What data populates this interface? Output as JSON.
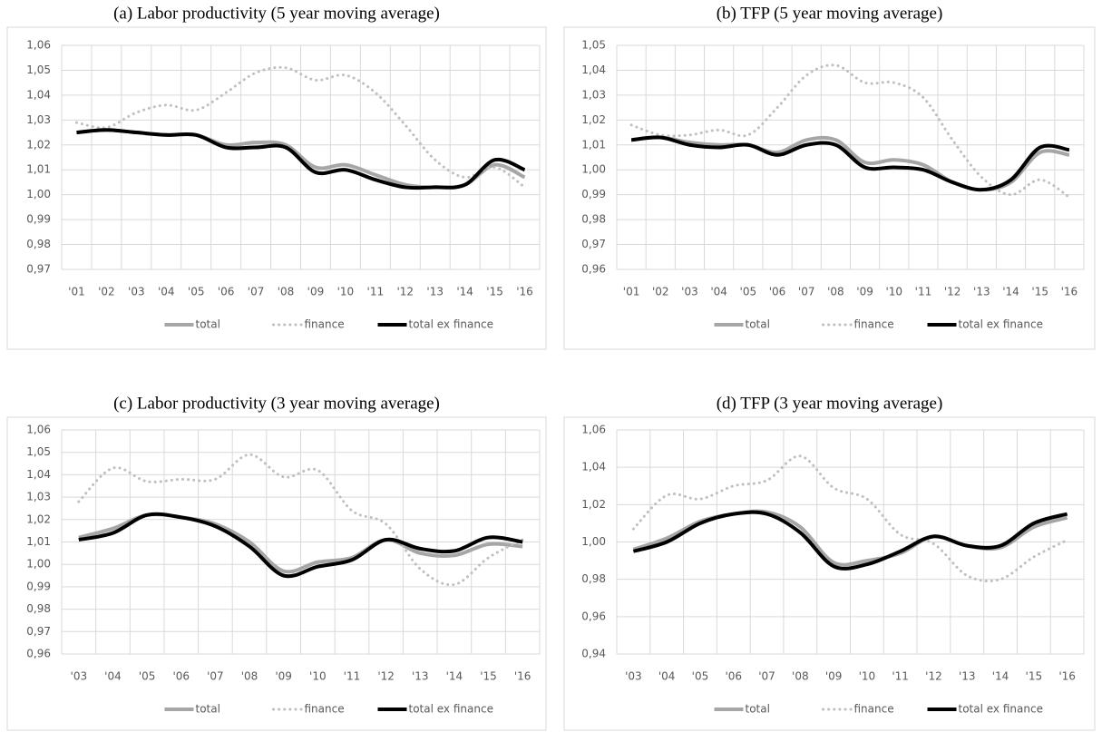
{
  "chart_data": [
    {
      "type": "line",
      "title": "(a) Labor productivity (5 year moving average)",
      "categories": [
        "'01",
        "'02",
        "'03",
        "'04",
        "'05",
        "'06",
        "'07",
        "'08",
        "'09",
        "'10",
        "'11",
        "'12",
        "'13",
        "'14",
        "'15",
        "'16"
      ],
      "series": [
        {
          "name": "total",
          "color": "#a6a6a6",
          "style": "solid",
          "values": [
            1.025,
            1.026,
            1.025,
            1.024,
            1.024,
            1.02,
            1.021,
            1.02,
            1.011,
            1.012,
            1.008,
            1.004,
            1.003,
            1.004,
            1.012,
            1.007
          ]
        },
        {
          "name": "finance",
          "color": "#bfbfbf",
          "style": "dotted",
          "values": [
            1.029,
            1.027,
            1.033,
            1.036,
            1.034,
            1.041,
            1.049,
            1.051,
            1.046,
            1.048,
            1.041,
            1.028,
            1.014,
            1.007,
            1.011,
            1.003
          ]
        },
        {
          "name": "total ex finance",
          "color": "#000000",
          "style": "solid",
          "values": [
            1.025,
            1.026,
            1.025,
            1.024,
            1.024,
            1.019,
            1.019,
            1.019,
            1.009,
            1.01,
            1.006,
            1.003,
            1.003,
            1.004,
            1.014,
            1.01
          ]
        }
      ],
      "ylim": [
        0.97,
        1.06
      ],
      "yticks": [
        {
          "value": 0.97,
          "label": "0,97"
        },
        {
          "value": 0.98,
          "label": "0,98"
        },
        {
          "value": 0.99,
          "label": "0,99"
        },
        {
          "value": 1.0,
          "label": "1,00"
        },
        {
          "value": 1.01,
          "label": "1,01"
        },
        {
          "value": 1.02,
          "label": "1,02"
        },
        {
          "value": 1.03,
          "label": "1,03"
        },
        {
          "value": 1.04,
          "label": "1,04"
        },
        {
          "value": 1.05,
          "label": "1,05"
        },
        {
          "value": 1.06,
          "label": "1,06"
        }
      ],
      "grid": true,
      "legend": "bottom"
    },
    {
      "type": "line",
      "title": "(b) TFP (5 year moving average)",
      "categories": [
        "'01",
        "'02",
        "'03",
        "'04",
        "'05",
        "'06",
        "'07",
        "'08",
        "'09",
        "'10",
        "'11",
        "'12",
        "'13",
        "'14",
        "'15",
        "'16"
      ],
      "series": [
        {
          "name": "total",
          "color": "#a6a6a6",
          "style": "solid",
          "values": [
            1.012,
            1.013,
            1.011,
            1.01,
            1.01,
            1.007,
            1.012,
            1.012,
            1.003,
            1.004,
            1.002,
            0.995,
            0.992,
            0.995,
            1.007,
            1.006
          ]
        },
        {
          "name": "finance",
          "color": "#bfbfbf",
          "style": "dotted",
          "values": [
            1.018,
            1.014,
            1.014,
            1.016,
            1.014,
            1.025,
            1.038,
            1.042,
            1.035,
            1.035,
            1.029,
            1.012,
            0.997,
            0.99,
            0.996,
            0.989
          ]
        },
        {
          "name": "total ex finance",
          "color": "#000000",
          "style": "solid",
          "values": [
            1.012,
            1.013,
            1.01,
            1.009,
            1.01,
            1.006,
            1.01,
            1.01,
            1.001,
            1.001,
            1.0,
            0.995,
            0.992,
            0.996,
            1.009,
            1.008
          ]
        }
      ],
      "ylim": [
        0.96,
        1.05
      ],
      "yticks": [
        {
          "value": 0.96,
          "label": "0,96"
        },
        {
          "value": 0.97,
          "label": "0,97"
        },
        {
          "value": 0.98,
          "label": "0,98"
        },
        {
          "value": 0.99,
          "label": "0,99"
        },
        {
          "value": 1.0,
          "label": "1,00"
        },
        {
          "value": 1.01,
          "label": "1,01"
        },
        {
          "value": 1.02,
          "label": "1,02"
        },
        {
          "value": 1.03,
          "label": "1,03"
        },
        {
          "value": 1.04,
          "label": "1,04"
        },
        {
          "value": 1.05,
          "label": "1,05"
        }
      ],
      "grid": true,
      "legend": "bottom"
    },
    {
      "type": "line",
      "title": "(c) Labor productivity (3 year moving average)",
      "categories": [
        "'03",
        "'04",
        "'05",
        "'06",
        "'07",
        "'08",
        "'09",
        "'10",
        "'11",
        "'12",
        "'13",
        "'14",
        "'15",
        "'16"
      ],
      "series": [
        {
          "name": "total",
          "color": "#a6a6a6",
          "style": "solid",
          "values": [
            1.012,
            1.016,
            1.022,
            1.021,
            1.018,
            1.01,
            0.997,
            1.001,
            1.003,
            1.011,
            1.005,
            1.004,
            1.009,
            1.008
          ]
        },
        {
          "name": "finance",
          "color": "#bfbfbf",
          "style": "dotted",
          "values": [
            1.028,
            1.043,
            1.037,
            1.038,
            1.038,
            1.049,
            1.039,
            1.042,
            1.024,
            1.018,
            0.998,
            0.991,
            1.003,
            1.011
          ]
        },
        {
          "name": "total ex finance",
          "color": "#000000",
          "style": "solid",
          "values": [
            1.011,
            1.014,
            1.022,
            1.021,
            1.017,
            1.008,
            0.995,
            0.999,
            1.002,
            1.011,
            1.007,
            1.006,
            1.012,
            1.01
          ]
        }
      ],
      "ylim": [
        0.96,
        1.06
      ],
      "yticks": [
        {
          "value": 0.96,
          "label": "0,96"
        },
        {
          "value": 0.97,
          "label": "0,97"
        },
        {
          "value": 0.98,
          "label": "0,98"
        },
        {
          "value": 0.99,
          "label": "0,99"
        },
        {
          "value": 1.0,
          "label": "1,00"
        },
        {
          "value": 1.01,
          "label": "1,01"
        },
        {
          "value": 1.02,
          "label": "1,02"
        },
        {
          "value": 1.03,
          "label": "1,03"
        },
        {
          "value": 1.04,
          "label": "1,04"
        },
        {
          "value": 1.05,
          "label": "1,05"
        },
        {
          "value": 1.06,
          "label": "1,06"
        }
      ],
      "grid": true,
      "legend": "bottom"
    },
    {
      "type": "line",
      "title": "(d) TFP (3 year moving average)",
      "categories": [
        "'03",
        "'04",
        "'05",
        "'06",
        "'07",
        "'08",
        "'09",
        "'10",
        "'11",
        "'12",
        "'13",
        "'14",
        "'15",
        "'16"
      ],
      "series": [
        {
          "name": "total",
          "color": "#a6a6a6",
          "style": "solid",
          "values": [
            0.996,
            1.002,
            1.011,
            1.015,
            1.016,
            1.008,
            0.989,
            0.99,
            0.994,
            1.003,
            0.998,
            0.997,
            1.008,
            1.013
          ]
        },
        {
          "name": "finance",
          "color": "#bfbfbf",
          "style": "dotted",
          "values": [
            1.007,
            1.025,
            1.023,
            1.03,
            1.033,
            1.046,
            1.029,
            1.023,
            1.004,
            0.999,
            0.982,
            0.98,
            0.992,
            1.001
          ]
        },
        {
          "name": "total ex finance",
          "color": "#000000",
          "style": "solid",
          "values": [
            0.995,
            1.0,
            1.01,
            1.015,
            1.015,
            1.005,
            0.987,
            0.988,
            0.995,
            1.003,
            0.998,
            0.998,
            1.01,
            1.015
          ]
        }
      ],
      "ylim": [
        0.94,
        1.06
      ],
      "yticks": [
        {
          "value": 0.94,
          "label": "0,94"
        },
        {
          "value": 0.96,
          "label": "0,96"
        },
        {
          "value": 0.98,
          "label": "0,98"
        },
        {
          "value": 1.0,
          "label": "1,00"
        },
        {
          "value": 1.02,
          "label": "1,02"
        },
        {
          "value": 1.04,
          "label": "1,04"
        },
        {
          "value": 1.06,
          "label": "1,06"
        }
      ],
      "grid": true,
      "legend": "bottom"
    }
  ]
}
